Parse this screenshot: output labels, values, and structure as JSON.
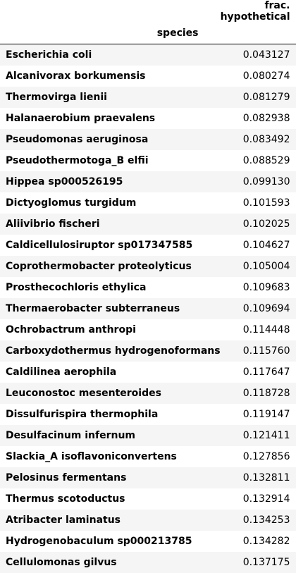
{
  "table": {
    "value_column_header": "frac. hypothetical",
    "index_header": "species",
    "rows": [
      {
        "species": "Escherichia coli",
        "value": "0.043127"
      },
      {
        "species": "Alcanivorax borkumensis",
        "value": "0.080274"
      },
      {
        "species": "Thermovirga lienii",
        "value": "0.081279"
      },
      {
        "species": "Halanaerobium praevalens",
        "value": "0.082938"
      },
      {
        "species": "Pseudomonas aeruginosa",
        "value": "0.083492"
      },
      {
        "species": "Pseudothermotoga_B elfii",
        "value": "0.088529"
      },
      {
        "species": "Hippea sp000526195",
        "value": "0.099130"
      },
      {
        "species": "Dictyoglomus turgidum",
        "value": "0.101593"
      },
      {
        "species": "Aliivibrio fischeri",
        "value": "0.102025"
      },
      {
        "species": "Caldicellulosiruptor sp017347585",
        "value": "0.104627"
      },
      {
        "species": "Coprothermobacter proteolyticus",
        "value": "0.105004"
      },
      {
        "species": "Prosthecochloris ethylica",
        "value": "0.109683"
      },
      {
        "species": "Thermaerobacter subterraneus",
        "value": "0.109694"
      },
      {
        "species": "Ochrobactrum anthropi",
        "value": "0.114448"
      },
      {
        "species": "Carboxydothermus hydrogenoformans",
        "value": "0.115760"
      },
      {
        "species": "Caldilinea aerophila",
        "value": "0.117647"
      },
      {
        "species": "Leuconostoc mesenteroides",
        "value": "0.118728"
      },
      {
        "species": "Dissulfurispira thermophila",
        "value": "0.119147"
      },
      {
        "species": "Desulfacinum infernum",
        "value": "0.121411"
      },
      {
        "species": "Slackia_A isoflavoniconvertens",
        "value": "0.127856"
      },
      {
        "species": "Pelosinus fermentans",
        "value": "0.132811"
      },
      {
        "species": "Thermus scotoductus",
        "value": "0.132914"
      },
      {
        "species": "Atribacter laminatus",
        "value": "0.134253"
      },
      {
        "species": "Hydrogenobaculum sp000213785",
        "value": "0.134282"
      },
      {
        "species": "Cellulomonas gilvus",
        "value": "0.137175"
      }
    ]
  }
}
